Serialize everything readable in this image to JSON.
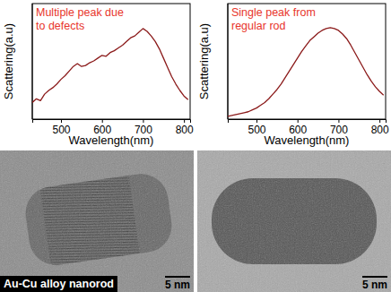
{
  "chart_data": [
    {
      "type": "line",
      "annotation": [
        "Multiple peak due",
        "to defects"
      ],
      "x_label": "Wavelength(nm)",
      "y_label": "Scattering(a.u)",
      "x": [
        430,
        440,
        450,
        460,
        470,
        480,
        490,
        500,
        510,
        520,
        530,
        540,
        550,
        560,
        570,
        580,
        590,
        600,
        610,
        620,
        630,
        640,
        650,
        660,
        670,
        680,
        690,
        700,
        710,
        720,
        730,
        740,
        750,
        760,
        770,
        780,
        790,
        800,
        810
      ],
      "values": [
        0.18,
        0.22,
        0.2,
        0.27,
        0.31,
        0.34,
        0.38,
        0.43,
        0.47,
        0.52,
        0.57,
        0.6,
        0.57,
        0.58,
        0.61,
        0.63,
        0.66,
        0.69,
        0.68,
        0.72,
        0.74,
        0.77,
        0.8,
        0.84,
        0.88,
        0.9,
        0.94,
        0.98,
        0.95,
        0.9,
        0.84,
        0.76,
        0.66,
        0.56,
        0.46,
        0.38,
        0.31,
        0.25,
        0.21
      ],
      "color": "#8b1a1a",
      "xlim": [
        430,
        815
      ],
      "xticks": [
        500,
        600,
        700,
        800
      ],
      "ylim": [
        0,
        1.25
      ],
      "tick_labels": "x"
    },
    {
      "type": "line",
      "annotation": [
        "Single peak from",
        "regular rod"
      ],
      "x_label": "Wavelength(nm)",
      "y_label": "Scattering(a.u)",
      "x": [
        430,
        440,
        450,
        460,
        470,
        480,
        490,
        500,
        510,
        520,
        530,
        540,
        550,
        560,
        570,
        580,
        590,
        600,
        610,
        620,
        630,
        640,
        650,
        660,
        670,
        680,
        690,
        700,
        710,
        720,
        730,
        740,
        750,
        760,
        770,
        780,
        790,
        800,
        810
      ],
      "values": [
        0.03,
        0.04,
        0.05,
        0.06,
        0.07,
        0.08,
        0.1,
        0.12,
        0.15,
        0.18,
        0.22,
        0.27,
        0.32,
        0.38,
        0.45,
        0.52,
        0.59,
        0.66,
        0.73,
        0.79,
        0.85,
        0.89,
        0.93,
        0.96,
        0.98,
        0.99,
        0.98,
        0.96,
        0.92,
        0.87,
        0.8,
        0.72,
        0.64,
        0.56,
        0.48,
        0.41,
        0.35,
        0.3,
        0.26
      ],
      "color": "#8b1a1a",
      "xlim": [
        430,
        815
      ],
      "xticks": [
        500,
        600,
        700,
        800
      ],
      "ylim": [
        0,
        1.25
      ],
      "tick_labels": "x"
    }
  ],
  "images": [
    {
      "label": "Au-Cu alloy nanorod",
      "scale_bar": "5 nm"
    },
    {
      "scale_bar": "5 nm"
    }
  ]
}
